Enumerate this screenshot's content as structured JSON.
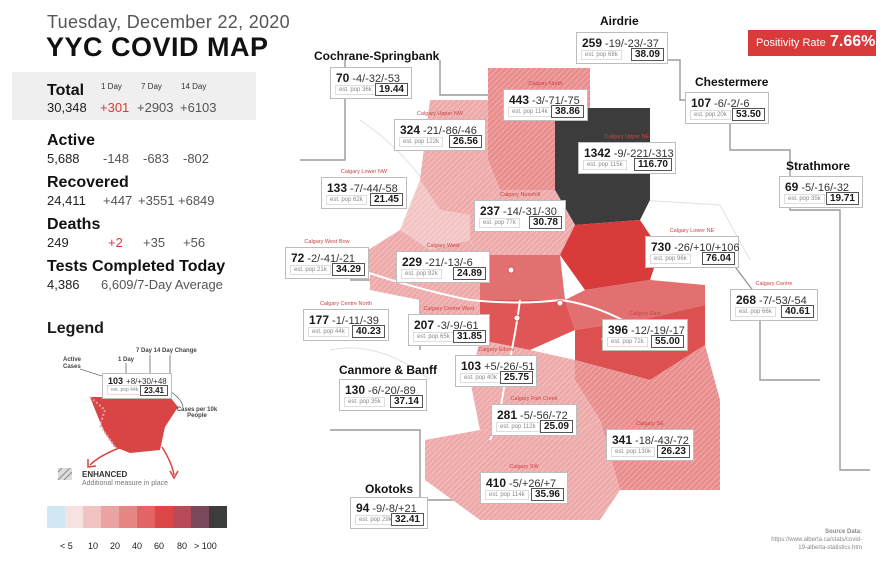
{
  "header": {
    "date": "Tuesday, December 22, 2020",
    "title": "YYC COVID MAP"
  },
  "positivity": {
    "label": "Positivity Rate",
    "value": "7.66%"
  },
  "stats": {
    "col_headers": [
      "1 Day",
      "7 Day",
      "14 Day"
    ],
    "total": {
      "label": "Total",
      "value": "30,348",
      "d1": "+301",
      "d7": "+2903",
      "d14": "+6103"
    },
    "active": {
      "label": "Active",
      "value": "5,688",
      "d1": "-148",
      "d7": "-683",
      "d14": "-802"
    },
    "recovered": {
      "label": "Recovered",
      "value": "24,411",
      "d1": "+447",
      "d7": "+3551",
      "d14": "+6849"
    },
    "deaths": {
      "label": "Deaths",
      "value": "249",
      "d1": "+2",
      "d7": "+35",
      "d14": "+56"
    },
    "tests": {
      "label": "Tests Completed Today",
      "value": "4,386",
      "avg": "6,609/7-Day Average"
    }
  },
  "legend": {
    "title": "Legend",
    "labels": {
      "active": "Active Cases",
      "day1": "1 Day",
      "day7_14": "7 Day  14 Day Change",
      "per10k": "Cases per 10k People"
    },
    "example": {
      "active": "103",
      "chg": "+8/+30/+48",
      "pop": "est. pop 44k",
      "rate": "23.41"
    },
    "enhanced": "ENHANCED",
    "enhanced_sub": "Additional measure in place",
    "scale_colors": [
      "#cfe8f3",
      "#f7e2e2",
      "#f2c3c3",
      "#eda3a3",
      "#e88585",
      "#e26464",
      "#db4747",
      "#b94a59",
      "#7a4a5c",
      "#3c3c3c"
    ],
    "scale_labels": [
      "< 5",
      "10",
      "20",
      "40",
      "60",
      "80",
      "> 100"
    ]
  },
  "source": {
    "label": "Source Data:",
    "url": "https://www.alberta.ca/stats/covid-19-alberta-statistics.htm"
  },
  "regions": [
    {
      "name": "Airdrie",
      "active": "259",
      "chg": "-19/-23/-37",
      "pop": "est. pop 68k",
      "rate": "38.09"
    },
    {
      "name": "Cochrane-Springbank",
      "active": "70",
      "chg": "-4/-32/-53",
      "pop": "est. pop 36k",
      "rate": "19.44"
    },
    {
      "name": "Chestermere",
      "active": "107",
      "chg": "-6/-2/-6",
      "pop": "est. pop 20k",
      "rate": "53.50"
    },
    {
      "name": "Strathmore",
      "active": "69",
      "chg": "-5/-16/-32",
      "pop": "est. pop 35k",
      "rate": "19.71"
    },
    {
      "name": "Canmore & Banff",
      "active": "130",
      "chg": "-6/-20/-89",
      "pop": "est. pop 35k",
      "rate": "37.14"
    },
    {
      "name": "Okotoks",
      "active": "94",
      "chg": "-9/-8/+21",
      "pop": "est. pop 29k",
      "rate": "32.41"
    }
  ],
  "districts": [
    {
      "name": "Calgary North",
      "active": "443",
      "chg": "-3/-71/-75",
      "pop": "est. pop 114k",
      "rate": "38.86"
    },
    {
      "name": "Calgary Upper NW",
      "active": "324",
      "chg": "-21/-86/-46",
      "pop": "est. pop 122k",
      "rate": "26.56"
    },
    {
      "name": "Calgary Upper NE",
      "active": "1342",
      "chg": "-9/-221/-313",
      "pop": "est. pop 115k",
      "rate": "116.70"
    },
    {
      "name": "Calgary Lower NW",
      "active": "133",
      "chg": "-7/-44/-58",
      "pop": "est. pop 62k",
      "rate": "21.45"
    },
    {
      "name": "Calgary Nosehill",
      "active": "237",
      "chg": "-14/-31/-30",
      "pop": "est. pop 77k",
      "rate": "30.78"
    },
    {
      "name": "Calgary Lower NE",
      "active": "730",
      "chg": "-26/+10/+106",
      "pop": "est. pop 96k",
      "rate": "76.04"
    },
    {
      "name": "Calgary West Bow",
      "active": "72",
      "chg": "-2/-41/-21",
      "pop": "est. pop 21k",
      "rate": "34.29"
    },
    {
      "name": "Calgary West",
      "active": "229",
      "chg": "-21/-13/-6",
      "pop": "est. pop 92k",
      "rate": "24.89"
    },
    {
      "name": "Calgary Centre",
      "active": "268",
      "chg": "-7/-53/-54",
      "pop": "est. pop 66k",
      "rate": "40.61"
    },
    {
      "name": "Calgary Centre North",
      "active": "177",
      "chg": "-1/-11/-39",
      "pop": "est. pop 44k",
      "rate": "40.23"
    },
    {
      "name": "Calgary Centre West",
      "active": "207",
      "chg": "-3/-9/-61",
      "pop": "est. pop 65k",
      "rate": "31.85"
    },
    {
      "name": "Calgary East",
      "active": "396",
      "chg": "-12/-19/-17",
      "pop": "est. pop 72k",
      "rate": "55.00"
    },
    {
      "name": "Calgary Elbow",
      "active": "103",
      "chg": "+5/-26/-51",
      "pop": "est. pop 40k",
      "rate": "25.75"
    },
    {
      "name": "Calgary Fish Creek",
      "active": "281",
      "chg": "-5/-56/-72",
      "pop": "est. pop 112k",
      "rate": "25.09"
    },
    {
      "name": "Calgary SE",
      "active": "341",
      "chg": "-18/-43/-72",
      "pop": "est. pop 130k",
      "rate": "26.23"
    },
    {
      "name": "Calgary SW",
      "active": "410",
      "chg": "-5/+26/+7",
      "pop": "est. pop 114k",
      "rate": "35.96"
    }
  ]
}
